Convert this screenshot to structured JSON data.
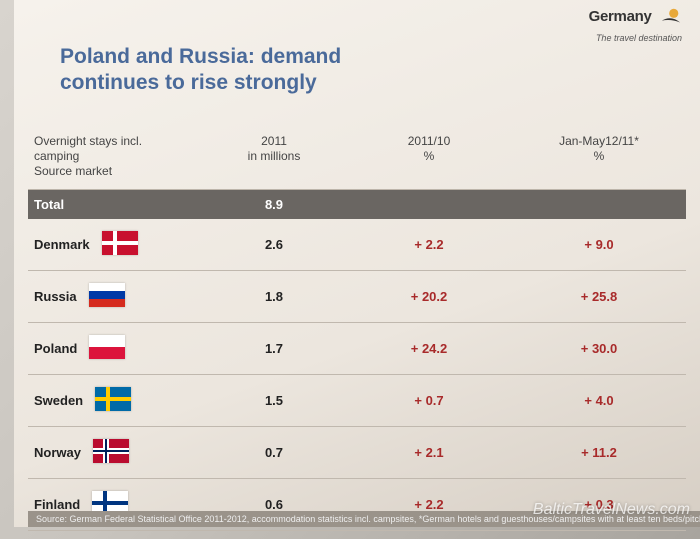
{
  "logo": {
    "brand": "Germany",
    "tagline": "The travel destination",
    "sun_color": "#e8a93a",
    "swoosh_color": "#333333"
  },
  "title": {
    "line1": "Poland and Russia: demand",
    "line2": "continues to rise strongly",
    "color": "#4a6a9a"
  },
  "headers": {
    "col1_line1": "Overnight stays incl.",
    "col1_line2": "camping",
    "col1_line3": "Source market",
    "col2_line1": "2011",
    "col2_line2": "in millions",
    "col3_line1": "2011/10",
    "col3_line2": "%",
    "col4_line1": "Jan-May12/11*",
    "col4_line2": "%"
  },
  "total": {
    "label": "Total",
    "value": "8.9"
  },
  "rows": [
    {
      "country": "Denmark",
      "value": "2.6",
      "pct1": "+  2.2",
      "pct2": "+  9.0",
      "flag": {
        "type": "nordic",
        "bg": "#c8102e",
        "cross": "#ffffff"
      }
    },
    {
      "country": "Russia",
      "value": "1.8",
      "pct1": "+ 20.2",
      "pct2": "+ 25.8",
      "flag": {
        "type": "tricolor_h",
        "c1": "#ffffff",
        "c2": "#0039a6",
        "c3": "#d52b1e"
      }
    },
    {
      "country": "Poland",
      "value": "1.7",
      "pct1": "+ 24.2",
      "pct2": "+ 30.0",
      "flag": {
        "type": "bicolor_h",
        "c1": "#ffffff",
        "c2": "#dc143c"
      }
    },
    {
      "country": "Sweden",
      "value": "1.5",
      "pct1": "+  0.7",
      "pct2": "+  4.0",
      "flag": {
        "type": "nordic",
        "bg": "#006aa7",
        "cross": "#fecc00"
      }
    },
    {
      "country": "Norway",
      "value": "0.7",
      "pct1": "+  2.1",
      "pct2": "+ 11.2",
      "flag": {
        "type": "nordic_double",
        "bg": "#ba0c2f",
        "outer": "#ffffff",
        "inner": "#00205b"
      }
    },
    {
      "country": "Finland",
      "value": "0.6",
      "pct1": "+  2.2",
      "pct2": "+  0.3",
      "flag": {
        "type": "nordic",
        "bg": "#ffffff",
        "cross": "#003580"
      }
    }
  ],
  "footnote": "Source: German Federal Statistical Office 2011-2012, accommodation statistics incl. campsites, *German hotels and guesthouses/campsites with at least ten beds/pitches",
  "watermark": "BalticTravelNews.com",
  "colors": {
    "pct_text": "#a82a2a",
    "total_bg": "#6a6662"
  }
}
